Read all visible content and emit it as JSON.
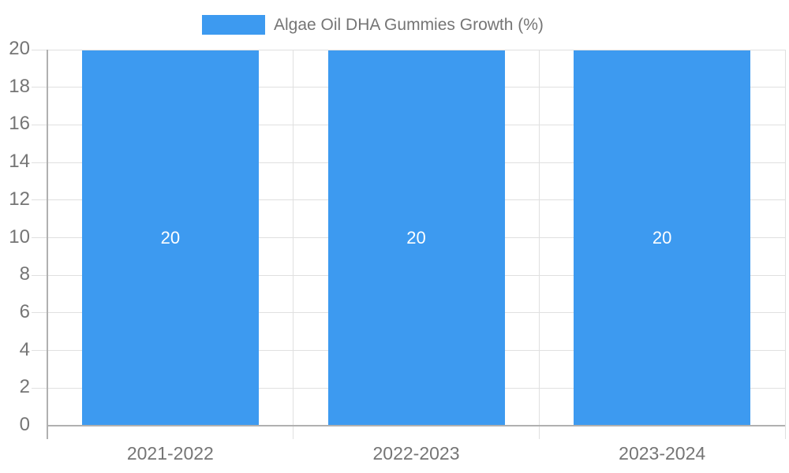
{
  "legend": {
    "label": "Algae Oil DHA Gummies Growth (%)"
  },
  "chart_data": {
    "type": "bar",
    "title": "Algae Oil DHA Gummies Growth (%)",
    "categories": [
      "2021-2022",
      "2022-2023",
      "2023-2024"
    ],
    "values": [
      20,
      20,
      20
    ],
    "value_labels": [
      "20",
      "20",
      "20"
    ],
    "xlabel": "",
    "ylabel": "",
    "ylim": [
      0,
      20
    ],
    "yticks": [
      0,
      2,
      4,
      6,
      8,
      10,
      12,
      14,
      16,
      18,
      20
    ],
    "grid": true,
    "legend_position": "top",
    "colors": {
      "bar": "#3D9AF0",
      "value_label": "#ffffff",
      "axis_text": "#757575",
      "gridline": "#e0e0e0",
      "axis_line": "#b0b0b0"
    }
  }
}
